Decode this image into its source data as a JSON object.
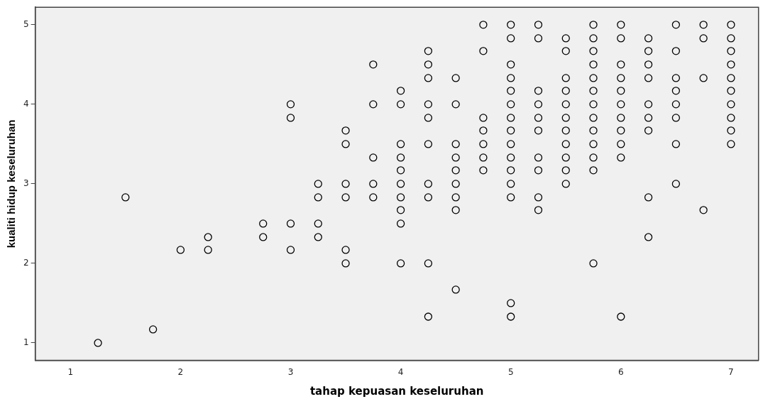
{
  "chart_data": {
    "type": "scatter",
    "xlabel": "tahap kepuasan keseluruhan",
    "ylabel": "kualiti hidup keseluruhan",
    "color": "#000000",
    "marker": "circle",
    "xlim": [
      0.68,
      7.25
    ],
    "ylim": [
      0.78,
      5.22
    ],
    "xticks": [
      1,
      2,
      3,
      4,
      5,
      6,
      7
    ],
    "yticks": [
      1,
      2,
      3,
      4,
      5
    ],
    "x": [
      1.25,
      1.5,
      1.75,
      2,
      2.25,
      2.25,
      2.75,
      2.75,
      3,
      3,
      3,
      3,
      3.25,
      3.25,
      3.25,
      3.25,
      3.5,
      3.5,
      3.5,
      3.5,
      3.5,
      3.5,
      3.75,
      3.75,
      3.75,
      3.75,
      3.75,
      4,
      4,
      4,
      4,
      4,
      4,
      4,
      4,
      4,
      4,
      4.25,
      4.25,
      4.25,
      4.25,
      4.25,
      4.25,
      4.25,
      4.25,
      4.25,
      4.25,
      4.5,
      4.5,
      4.5,
      4.5,
      4.5,
      4.5,
      4.5,
      4.5,
      4.5,
      4.75,
      4.75,
      4.75,
      4.75,
      4.75,
      4.75,
      4.75,
      5,
      5,
      5,
      5,
      5,
      5,
      5,
      5,
      5,
      5,
      5,
      5,
      5,
      5,
      5,
      5.25,
      5.25,
      5.25,
      5.25,
      5.25,
      5.25,
      5.25,
      5.25,
      5.25,
      5.25,
      5.5,
      5.5,
      5.5,
      5.5,
      5.5,
      5.5,
      5.5,
      5.5,
      5.5,
      5.5,
      5.5,
      5.75,
      5.75,
      5.75,
      5.75,
      5.75,
      5.75,
      5.75,
      5.75,
      5.75,
      5.75,
      5.75,
      5.75,
      5.75,
      6,
      6,
      6,
      6,
      6,
      6,
      6,
      6,
      6,
      6,
      6,
      6.25,
      6.25,
      6.25,
      6.25,
      6.25,
      6.25,
      6.25,
      6.25,
      6.25,
      6.5,
      6.5,
      6.5,
      6.5,
      6.5,
      6.5,
      6.5,
      6.5,
      6.75,
      6.75,
      6.75,
      6.75,
      7,
      7,
      7,
      7,
      7,
      7,
      7,
      7,
      7,
      7
    ],
    "values": [
      1,
      2.83,
      1.17,
      2.17,
      2.33,
      2.17,
      2.5,
      2.33,
      4,
      3.83,
      2.5,
      2.17,
      3,
      2.83,
      2.5,
      2.33,
      3.67,
      3.5,
      3,
      2.83,
      2.17,
      2,
      4.5,
      4,
      3.33,
      3,
      2.83,
      4.17,
      4,
      3.5,
      3.33,
      3.17,
      3,
      2.83,
      2.67,
      2.5,
      2,
      4.67,
      4.5,
      4.33,
      4,
      3.83,
      3.5,
      3,
      2.83,
      2,
      1.33,
      4.33,
      4,
      3.5,
      3.33,
      3.17,
      3,
      2.83,
      2.67,
      1.67,
      5,
      4.67,
      3.83,
      3.67,
      3.5,
      3.33,
      3.17,
      5,
      4.83,
      4.5,
      4.33,
      4.17,
      4,
      3.83,
      3.67,
      3.5,
      3.33,
      3.17,
      3,
      2.83,
      1.5,
      1.33,
      5,
      4.83,
      4.17,
      4,
      3.83,
      3.67,
      3.33,
      3.17,
      2.83,
      2.67,
      4.83,
      4.67,
      4.33,
      4.17,
      4,
      3.83,
      3.67,
      3.5,
      3.33,
      3.17,
      3,
      5,
      4.83,
      4.67,
      4.5,
      4.33,
      4.17,
      4,
      3.83,
      3.67,
      3.5,
      3.33,
      3.17,
      2,
      5,
      4.83,
      4.5,
      4.33,
      4.17,
      4,
      3.83,
      3.67,
      3.5,
      3.33,
      1.33,
      4.83,
      4.67,
      4.5,
      4.33,
      4,
      3.83,
      3.67,
      2.83,
      2.33,
      5,
      4.67,
      4.33,
      4.17,
      4,
      3.83,
      3.5,
      3,
      5,
      4.83,
      4.33,
      2.67,
      5,
      4.83,
      4.67,
      4.5,
      4.33,
      4.17,
      4,
      3.83,
      3.67,
      3.5
    ]
  }
}
